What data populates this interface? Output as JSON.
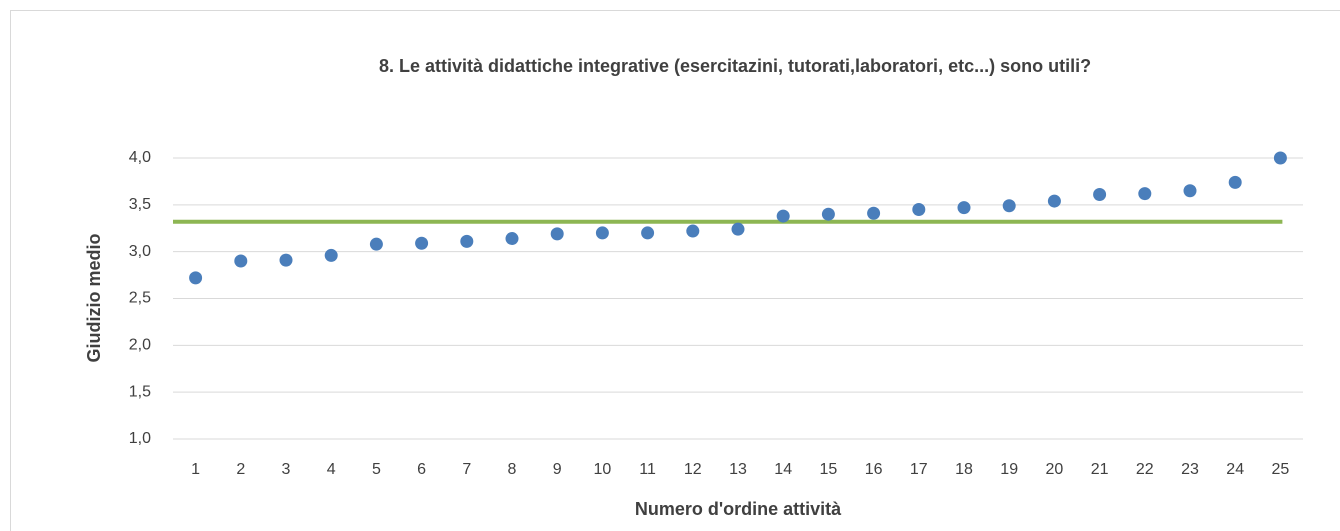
{
  "chart_data": {
    "type": "scatter",
    "title": "8. Le attività didattiche integrative (esercitazini, tutorati,laboratori, etc...) sono utili?",
    "x_label": "Numero d'ordine attività",
    "y_label": "Giudizio medio",
    "categories": [
      1,
      2,
      3,
      4,
      5,
      6,
      7,
      8,
      9,
      10,
      11,
      12,
      13,
      14,
      15,
      16,
      17,
      18,
      19,
      20,
      21,
      22,
      23,
      24,
      25
    ],
    "series": [
      {
        "color": "#4a7ebb",
        "values": [
          2.72,
          2.9,
          2.91,
          2.96,
          3.08,
          3.09,
          3.11,
          3.14,
          3.19,
          3.2,
          3.2,
          3.22,
          3.24,
          3.38,
          3.4,
          3.41,
          3.45,
          3.47,
          3.49,
          3.54,
          3.61,
          3.62,
          3.65,
          3.74,
          4.0
        ]
      }
    ],
    "reference_line": {
      "value": 3.32,
      "color": "#8db653"
    },
    "ylim": [
      1.0,
      4.0
    ],
    "yticks": [
      {
        "value": 1.0,
        "label": "1,0"
      },
      {
        "value": 1.5,
        "label": "1,5"
      },
      {
        "value": 2.0,
        "label": "2,0"
      },
      {
        "value": 2.5,
        "label": "2,5"
      },
      {
        "value": 3.0,
        "label": "3,0"
      },
      {
        "value": 3.5,
        "label": "3,5"
      },
      {
        "value": 4.0,
        "label": "4,0"
      }
    ],
    "grid": true
  }
}
